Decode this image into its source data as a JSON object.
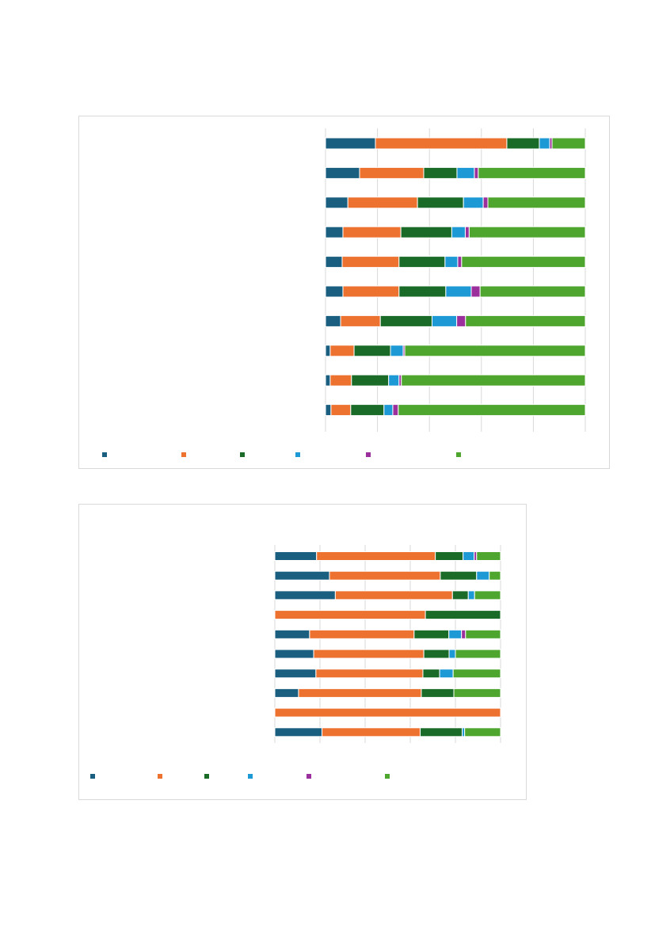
{
  "colors": {
    "series": [
      "#1a5e80",
      "#ed7230",
      "#1a6b28",
      "#1d9ad6",
      "#9b2f9b",
      "#4ea62f"
    ],
    "grid": "#d9d9d9"
  },
  "chart_data": [
    {
      "type": "bar",
      "orientation": "horizontal",
      "stacked": true,
      "percent": true,
      "xlim": [
        0,
        100
      ],
      "grid": true,
      "legend_position": "bottom",
      "categories": [
        "",
        "",
        "",
        "",
        "",
        "",
        "",
        "",
        "",
        ""
      ],
      "series": [
        {
          "values": [
            19.2,
            13.1,
            8.6,
            6.7,
            6.4,
            6.7,
            5.8,
            1.8,
            1.8,
            2.1
          ]
        },
        {
          "values": [
            50.6,
            24.7,
            26.8,
            22.3,
            21.9,
            21.6,
            15.3,
            9.2,
            8.2,
            7.6
          ]
        },
        {
          "values": [
            12.5,
            12.8,
            17.7,
            19.6,
            17.7,
            18.0,
            19.9,
            14.0,
            14.3,
            12.8
          ]
        },
        {
          "values": [
            4.0,
            6.7,
            7.6,
            5.2,
            4.9,
            9.8,
            9.5,
            4.9,
            4.0,
            3.4
          ]
        },
        {
          "values": [
            0.9,
            1.5,
            1.8,
            1.5,
            1.5,
            3.4,
            3.4,
            0.6,
            0.9,
            2.1
          ]
        },
        {
          "values": [
            12.8,
            41.2,
            37.5,
            44.7,
            47.6,
            40.5,
            46.1,
            69.5,
            70.8,
            72.0
          ]
        }
      ]
    },
    {
      "type": "bar",
      "orientation": "horizontal",
      "stacked": true,
      "percent": true,
      "xlim": [
        0,
        100
      ],
      "grid": true,
      "legend_position": "bottom",
      "categories": [
        "",
        "",
        "",
        "",
        "",
        "",
        "",
        "",
        "",
        ""
      ],
      "series": [
        {
          "values": [
            18.5,
            24.2,
            26.8,
            0,
            15.4,
            17.2,
            18.2,
            10.5,
            0,
            20.9
          ]
        },
        {
          "values": [
            52.6,
            49.1,
            51.9,
            66.7,
            46.3,
            48.8,
            47.4,
            54.4,
            100,
            43.5
          ]
        },
        {
          "values": [
            12.3,
            16.1,
            7.0,
            33.3,
            15.4,
            11.2,
            7.4,
            14.4,
            0,
            18.6
          ]
        },
        {
          "values": [
            4.9,
            5.6,
            2.8,
            0,
            5.6,
            2.8,
            6.0,
            0,
            0,
            1.1
          ]
        },
        {
          "values": [
            1.1,
            0,
            0,
            0,
            1.8,
            0,
            0,
            0,
            0,
            0
          ]
        },
        {
          "values": [
            10.6,
            5.0,
            11.5,
            0,
            15.5,
            20.0,
            21.0,
            20.7,
            0,
            15.9
          ]
        }
      ]
    }
  ]
}
